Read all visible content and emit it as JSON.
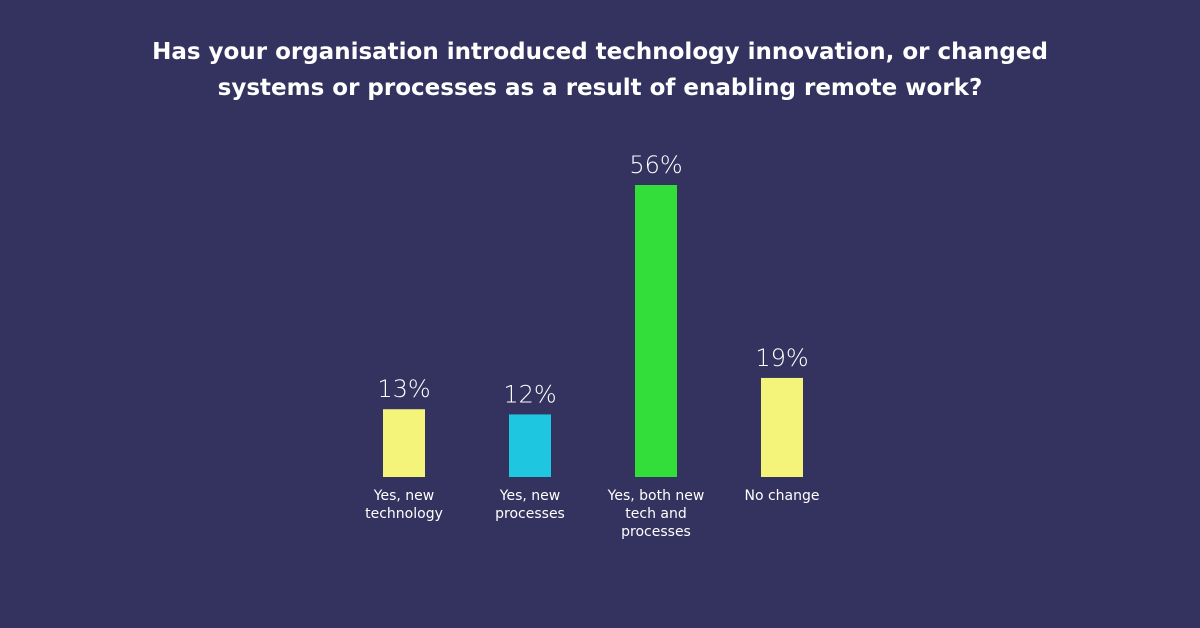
{
  "chart_data": {
    "type": "bar",
    "title": "Has your organisation introduced technology innovation, or changed systems or processes as a result of enabling remote work?",
    "categories": [
      "Yes, new technology",
      "Yes, new processes",
      "Yes, both new tech and processes",
      "No change"
    ],
    "values": [
      13,
      12,
      56,
      19
    ],
    "value_labels": [
      "13%",
      "12%",
      "56%",
      "19%"
    ],
    "colors": [
      "#f4f47a",
      "#1ec6e0",
      "#33dd3a",
      "#f4f47a"
    ]
  }
}
